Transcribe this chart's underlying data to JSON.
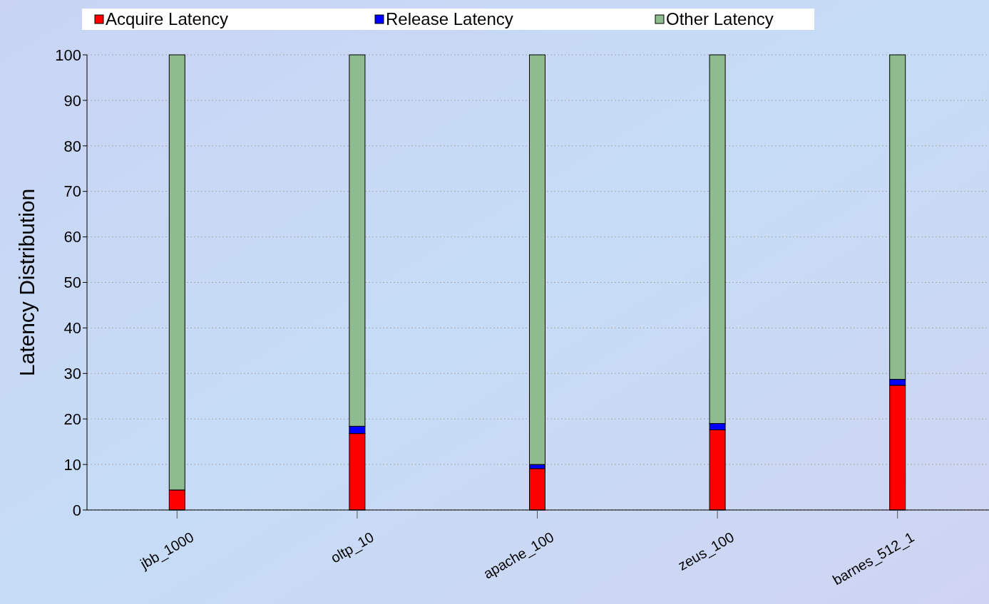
{
  "chart_data": {
    "type": "bar",
    "ylabel": "Latency Distribution",
    "categories": [
      "jbb_1000",
      "oltp_10",
      "apache_100",
      "zeus_100",
      "barnes_512_1"
    ],
    "stacked": true,
    "ylim": [
      0,
      100
    ],
    "yticks": [
      0,
      10,
      20,
      30,
      40,
      50,
      60,
      70,
      80,
      90,
      100
    ],
    "grid": "y",
    "legend": "top",
    "series": [
      {
        "name": "Acquire Latency",
        "color": "#ff0000",
        "values": [
          4.4,
          16.8,
          9.1,
          17.6,
          27.4
        ]
      },
      {
        "name": "Release Latency",
        "color": "#0000ff",
        "values": [
          0,
          1.6,
          0.9,
          1.4,
          1.3
        ]
      },
      {
        "name": "Other Latency",
        "color": "#8fbc8f",
        "values": [
          95.6,
          81.6,
          90,
          81,
          71.3
        ]
      }
    ]
  }
}
